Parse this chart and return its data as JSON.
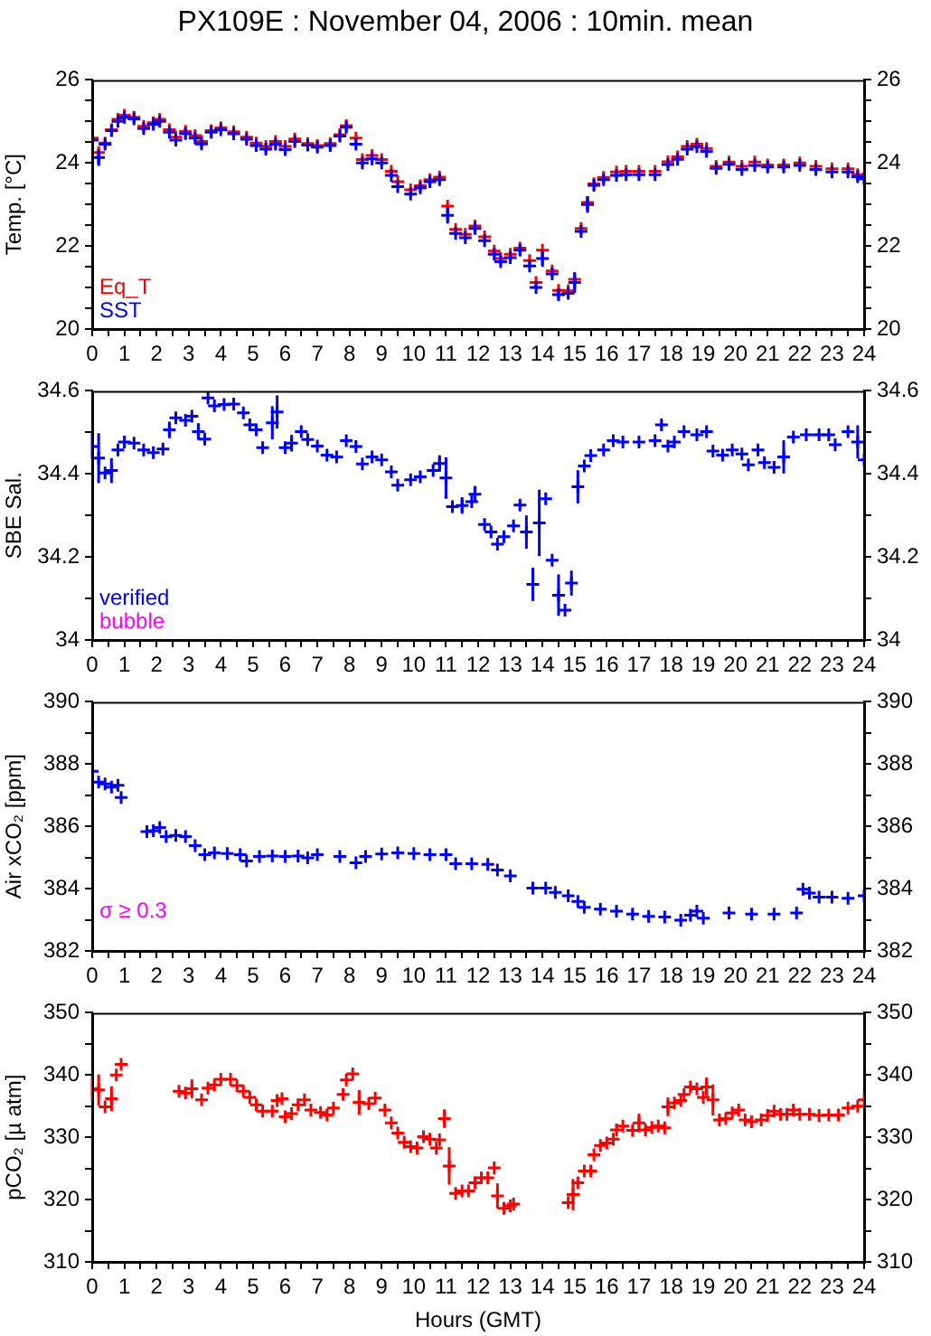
{
  "chart_data": [
    {
      "type": "scatter",
      "title": "PX109E : November 04, 2006 : 10min. mean",
      "ylabel": "Temp. [°C]",
      "legend": "bottom left",
      "marker": "cross",
      "xlim": [
        0,
        24
      ],
      "xticks": [
        0,
        {
          "value": 0.5,
          "label": null
        },
        1,
        {
          "value": 1.5,
          "label": null
        },
        2,
        {
          "value": 2.5,
          "label": null
        },
        3,
        {
          "value": 3.5,
          "label": null
        },
        4,
        {
          "value": 4.5,
          "label": null
        },
        5,
        {
          "value": 5.5,
          "label": null
        },
        6,
        {
          "value": 6.5,
          "label": null
        },
        7,
        {
          "value": 7.5,
          "label": null
        },
        8,
        {
          "value": 8.5,
          "label": null
        },
        9,
        {
          "value": 9.5,
          "label": null
        },
        10,
        {
          "value": 10.5,
          "label": null
        },
        11,
        {
          "value": 11.5,
          "label": null
        },
        12,
        {
          "value": 12.5,
          "label": null
        },
        13,
        {
          "value": 13.5,
          "label": null
        },
        14,
        {
          "value": 14.5,
          "label": null
        },
        15,
        {
          "value": 15.5,
          "label": null
        },
        16,
        {
          "value": 16.5,
          "label": null
        },
        17,
        {
          "value": 17.5,
          "label": null
        },
        18,
        {
          "value": 18.5,
          "label": null
        },
        19,
        {
          "value": 19.5,
          "label": null
        },
        20,
        {
          "value": 20.5,
          "label": null
        },
        21,
        {
          "value": 21.5,
          "label": null
        },
        22,
        {
          "value": 22.5,
          "label": null
        },
        23,
        {
          "value": 23.5,
          "label": null
        },
        24
      ],
      "ylim": [
        20,
        26
      ],
      "yticks": [
        20,
        {
          "value": 20.5,
          "label": null
        },
        {
          "value": 21,
          "label": null
        },
        {
          "value": 21.5,
          "label": null
        },
        22,
        {
          "value": 22.5,
          "label": null
        },
        {
          "value": 23,
          "label": null
        },
        {
          "value": 23.5,
          "label": null
        },
        24,
        {
          "value": 24.5,
          "label": null
        },
        {
          "value": 25,
          "label": null
        },
        {
          "value": 25.5,
          "label": null
        },
        26
      ],
      "y2lim": [
        20,
        26
      ],
      "y2ticks": [
        20,
        {
          "value": 20.5,
          "label": null
        },
        {
          "value": 21,
          "label": null
        },
        {
          "value": 21.5,
          "label": null
        },
        22,
        {
          "value": 22.5,
          "label": null
        },
        {
          "value": 23,
          "label": null
        },
        {
          "value": 23.5,
          "label": null
        },
        24,
        {
          "value": 24.5,
          "label": null
        },
        {
          "value": 25,
          "label": null
        },
        {
          "value": 25.5,
          "label": null
        },
        26
      ],
      "series": [
        {
          "name": "Eq_T",
          "color": "#ff0000",
          "x": [
            0,
            0.2,
            0.4,
            0.6,
            0.8,
            1.0,
            1.3,
            1.6,
            1.9,
            2.1,
            2.4,
            2.6,
            2.9,
            3.2,
            3.4,
            3.7,
            4.0,
            4.4,
            4.8,
            5.1,
            5.4,
            5.7,
            6.0,
            6.3,
            6.7,
            7.0,
            7.4,
            7.7,
            7.9,
            8.2,
            8.4,
            8.7,
            9.0,
            9.3,
            9.5,
            9.9,
            10.2,
            10.5,
            10.8,
            11.05,
            11.3,
            11.6,
            11.9,
            12.2,
            12.5,
            12.7,
            13.0,
            13.3,
            13.6,
            13.8,
            14.0,
            14.3,
            14.5,
            14.8,
            15.0,
            15.2,
            15.4,
            15.6,
            15.9,
            16.3,
            16.6,
            17.0,
            17.5,
            17.9,
            18.2,
            18.5,
            18.8,
            19.1,
            19.4,
            19.8,
            20.2,
            20.6,
            21.0,
            21.5,
            22.0,
            22.5,
            23.0,
            23.5,
            23.8,
            24.0
          ],
          "values": [
            24.6,
            24.25,
            24.48,
            24.8,
            25.05,
            25.15,
            25.1,
            24.88,
            24.97,
            25.05,
            24.8,
            24.62,
            24.76,
            24.66,
            24.52,
            24.78,
            24.85,
            24.75,
            24.62,
            24.48,
            24.4,
            24.52,
            24.4,
            24.58,
            24.47,
            24.42,
            24.47,
            24.68,
            24.9,
            24.6,
            24.08,
            24.18,
            24.08,
            23.8,
            23.55,
            23.35,
            23.45,
            23.6,
            23.66,
            22.96,
            22.4,
            22.28,
            22.48,
            22.22,
            21.88,
            21.7,
            21.8,
            21.95,
            21.65,
            21.12,
            21.9,
            21.4,
            20.93,
            20.92,
            21.2,
            22.42,
            23.05,
            23.5,
            23.65,
            23.78,
            23.8,
            23.8,
            23.8,
            24.03,
            24.15,
            24.4,
            24.45,
            24.35,
            23.92,
            24.02,
            23.92,
            24.02,
            23.95,
            23.95,
            24.0,
            23.92,
            23.86,
            23.86,
            23.72,
            23.65
          ]
        },
        {
          "name": "SST",
          "color": "#0000ff",
          "x": [
            0,
            0.2,
            0.4,
            0.6,
            0.8,
            1.0,
            1.3,
            1.6,
            1.9,
            2.1,
            2.4,
            2.6,
            2.9,
            3.2,
            3.4,
            3.7,
            4.0,
            4.4,
            4.8,
            5.1,
            5.4,
            5.7,
            6.0,
            6.3,
            6.7,
            7.0,
            7.4,
            7.7,
            7.9,
            8.2,
            8.4,
            8.7,
            9.0,
            9.3,
            9.5,
            9.9,
            10.2,
            10.5,
            10.8,
            11.05,
            11.3,
            11.6,
            11.9,
            12.2,
            12.5,
            12.7,
            13.0,
            13.3,
            13.6,
            13.8,
            14.0,
            14.3,
            14.5,
            14.8,
            15.0,
            15.2,
            15.4,
            15.6,
            15.9,
            16.3,
            16.6,
            17.0,
            17.5,
            17.9,
            18.2,
            18.5,
            18.8,
            19.1,
            19.4,
            19.8,
            20.2,
            20.6,
            21.0,
            21.5,
            22.0,
            22.5,
            23.0,
            23.5,
            23.8,
            24.0
          ],
          "values": [
            24.55,
            24.13,
            24.45,
            24.78,
            25.0,
            25.1,
            25.06,
            24.83,
            24.93,
            25.0,
            24.74,
            24.55,
            24.71,
            24.6,
            24.46,
            24.74,
            24.8,
            24.7,
            24.57,
            24.42,
            24.33,
            24.45,
            24.32,
            24.52,
            24.43,
            24.38,
            24.42,
            24.65,
            24.86,
            24.45,
            24.0,
            24.1,
            24.0,
            23.7,
            23.43,
            23.25,
            23.4,
            23.55,
            23.6,
            22.74,
            22.3,
            22.2,
            22.42,
            22.13,
            21.8,
            21.62,
            21.72,
            21.9,
            21.52,
            21.0,
            21.7,
            21.33,
            20.83,
            20.86,
            21.12,
            22.35,
            23.0,
            23.46,
            23.6,
            23.7,
            23.72,
            23.72,
            23.72,
            23.96,
            24.09,
            24.33,
            24.39,
            24.28,
            23.87,
            23.97,
            23.84,
            23.94,
            23.9,
            23.9,
            23.94,
            23.84,
            23.78,
            23.78,
            23.67,
            23.62
          ],
          "errors": [
            null,
            0.2,
            null,
            null,
            null,
            null,
            null,
            null,
            null,
            null,
            null,
            null,
            null,
            null,
            null,
            null,
            null,
            null,
            null,
            null,
            null,
            null,
            null,
            null,
            null,
            null,
            null,
            null,
            null,
            null,
            null,
            null,
            null,
            null,
            null,
            null,
            null,
            null,
            null,
            0.2,
            null,
            null,
            null,
            null,
            null,
            null,
            null,
            null,
            null,
            null,
            0.2,
            null,
            0.12,
            null,
            0.25,
            null,
            0.2,
            null,
            null,
            null,
            null,
            null,
            null,
            null,
            null,
            null,
            null,
            null,
            null,
            null,
            null,
            null,
            null,
            null,
            null,
            null,
            null,
            null,
            null,
            null
          ]
        }
      ]
    },
    {
      "type": "scatter",
      "ylabel": "SBE Sal.",
      "legend": "bottom left",
      "marker": "cross",
      "xlim": [
        0,
        24
      ],
      "xticks": [
        0,
        {
          "value": 0.5,
          "label": null
        },
        1,
        {
          "value": 1.5,
          "label": null
        },
        2,
        {
          "value": 2.5,
          "label": null
        },
        3,
        {
          "value": 3.5,
          "label": null
        },
        4,
        {
          "value": 4.5,
          "label": null
        },
        5,
        {
          "value": 5.5,
          "label": null
        },
        6,
        {
          "value": 6.5,
          "label": null
        },
        7,
        {
          "value": 7.5,
          "label": null
        },
        8,
        {
          "value": 8.5,
          "label": null
        },
        9,
        {
          "value": 9.5,
          "label": null
        },
        10,
        {
          "value": 10.5,
          "label": null
        },
        11,
        {
          "value": 11.5,
          "label": null
        },
        12,
        {
          "value": 12.5,
          "label": null
        },
        13,
        {
          "value": 13.5,
          "label": null
        },
        14,
        {
          "value": 14.5,
          "label": null
        },
        15,
        {
          "value": 15.5,
          "label": null
        },
        16,
        {
          "value": 16.5,
          "label": null
        },
        17,
        {
          "value": 17.5,
          "label": null
        },
        18,
        {
          "value": 18.5,
          "label": null
        },
        19,
        {
          "value": 19.5,
          "label": null
        },
        20,
        {
          "value": 20.5,
          "label": null
        },
        21,
        {
          "value": 21.5,
          "label": null
        },
        22,
        {
          "value": 22.5,
          "label": null
        },
        23,
        {
          "value": 23.5,
          "label": null
        },
        24
      ],
      "ylim": [
        34,
        34.6
      ],
      "yticks": [
        34,
        {
          "value": 34.1,
          "label": null
        },
        34.2,
        {
          "value": 34.3,
          "label": null
        },
        34.4,
        {
          "value": 34.5,
          "label": null
        },
        34.6
      ],
      "y2lim": [
        34,
        34.6
      ],
      "y2ticks": [
        34,
        {
          "value": 34.1,
          "label": null
        },
        34.2,
        {
          "value": 34.3,
          "label": null
        },
        34.4,
        {
          "value": 34.5,
          "label": null
        },
        34.6
      ],
      "series": [
        {
          "name": "verified",
          "color": "#0000ff",
          "x": [
            0,
            0.2,
            0.4,
            0.6,
            0.8,
            1.0,
            1.3,
            1.6,
            1.9,
            2.2,
            2.4,
            2.6,
            2.9,
            3.1,
            3.3,
            3.5,
            3.6,
            3.8,
            4.1,
            4.4,
            4.7,
            4.9,
            5.1,
            5.3,
            5.6,
            5.75,
            6.0,
            6.2,
            6.5,
            6.7,
            7.0,
            7.3,
            7.6,
            7.9,
            8.2,
            8.4,
            8.7,
            9.0,
            9.3,
            9.5,
            9.9,
            10.2,
            10.6,
            10.8,
            11.0,
            11.2,
            11.5,
            11.8,
            11.9,
            12.2,
            12.4,
            12.6,
            12.8,
            13.1,
            13.3,
            13.5,
            13.7,
            13.9,
            14.1,
            14.3,
            14.5,
            14.7,
            14.9,
            15.1,
            15.3,
            15.5,
            15.9,
            16.2,
            16.5,
            17.0,
            17.5,
            17.7,
            17.9,
            18.1,
            18.4,
            18.8,
            19.1,
            19.3,
            19.6,
            19.9,
            20.2,
            20.4,
            20.7,
            20.9,
            21.2,
            21.5,
            21.8,
            22.2,
            22.6,
            22.9,
            23.1,
            23.5,
            23.8,
            24.0
          ],
          "values": [
            34.466,
            34.438,
            34.402,
            34.408,
            34.458,
            34.477,
            34.474,
            34.458,
            34.451,
            34.46,
            34.506,
            34.535,
            34.529,
            34.539,
            34.502,
            34.484,
            34.583,
            34.564,
            34.567,
            34.568,
            34.547,
            34.518,
            34.506,
            34.463,
            34.523,
            34.549,
            34.463,
            34.474,
            34.502,
            34.483,
            34.467,
            34.445,
            34.441,
            34.48,
            34.466,
            34.424,
            34.441,
            34.434,
            34.405,
            34.373,
            34.386,
            34.393,
            34.408,
            34.425,
            34.39,
            34.321,
            34.324,
            34.333,
            34.351,
            34.278,
            34.26,
            34.231,
            34.249,
            34.275,
            34.325,
            34.26,
            34.134,
            34.282,
            34.34,
            34.192,
            34.108,
            34.072,
            34.137,
            34.369,
            34.419,
            34.444,
            34.458,
            34.48,
            34.477,
            34.477,
            34.48,
            34.518,
            34.467,
            34.477,
            34.502,
            34.494,
            34.502,
            34.455,
            34.445,
            34.458,
            34.448,
            34.422,
            34.458,
            34.427,
            34.416,
            34.441,
            34.489,
            34.494,
            34.494,
            34.494,
            34.47,
            34.502,
            34.477,
            34.434
          ],
          "errors": [
            0.03,
            0.06,
            null,
            0.03,
            null,
            null,
            null,
            null,
            null,
            null,
            0.02,
            null,
            null,
            null,
            0.02,
            null,
            null,
            null,
            null,
            null,
            null,
            null,
            null,
            null,
            0.04,
            0.04,
            null,
            0.02,
            null,
            null,
            null,
            null,
            null,
            null,
            null,
            null,
            null,
            null,
            null,
            null,
            null,
            null,
            null,
            0.02,
            0.05,
            null,
            0.02,
            null,
            0.02,
            null,
            null,
            null,
            null,
            null,
            null,
            0.04,
            0.04,
            0.08,
            null,
            null,
            0.05,
            null,
            0.03,
            0.04,
            null,
            null,
            null,
            null,
            null,
            null,
            null,
            null,
            null,
            null,
            null,
            null,
            null,
            null,
            null,
            null,
            null,
            null,
            null,
            null,
            null,
            0.04,
            null,
            null,
            null,
            null,
            null,
            null,
            0.04,
            null
          ]
        },
        {
          "name": "bubble",
          "color": "#ff00ff"
        }
      ]
    },
    {
      "type": "scatter",
      "ylabel": "Air xCO₂ [ppm]",
      "annotations": [
        "σ ≥ 0.3"
      ],
      "marker": "cross",
      "xlim": [
        0,
        24
      ],
      "xticks": [
        0,
        {
          "value": 0.5,
          "label": null
        },
        1,
        {
          "value": 1.5,
          "label": null
        },
        2,
        {
          "value": 2.5,
          "label": null
        },
        3,
        {
          "value": 3.5,
          "label": null
        },
        4,
        {
          "value": 4.5,
          "label": null
        },
        5,
        {
          "value": 5.5,
          "label": null
        },
        6,
        {
          "value": 6.5,
          "label": null
        },
        7,
        {
          "value": 7.5,
          "label": null
        },
        8,
        {
          "value": 8.5,
          "label": null
        },
        9,
        {
          "value": 9.5,
          "label": null
        },
        10,
        {
          "value": 10.5,
          "label": null
        },
        11,
        {
          "value": 11.5,
          "label": null
        },
        12,
        {
          "value": 12.5,
          "label": null
        },
        13,
        {
          "value": 13.5,
          "label": null
        },
        14,
        {
          "value": 14.5,
          "label": null
        },
        15,
        {
          "value": 15.5,
          "label": null
        },
        16,
        {
          "value": 16.5,
          "label": null
        },
        17,
        {
          "value": 17.5,
          "label": null
        },
        18,
        {
          "value": 18.5,
          "label": null
        },
        19,
        {
          "value": 19.5,
          "label": null
        },
        20,
        {
          "value": 20.5,
          "label": null
        },
        21,
        {
          "value": 21.5,
          "label": null
        },
        22,
        {
          "value": 22.5,
          "label": null
        },
        23,
        {
          "value": 23.5,
          "label": null
        },
        24
      ],
      "ylim": [
        382,
        390
      ],
      "yticks": [
        382,
        {
          "value": 383,
          "label": null
        },
        384,
        {
          "value": 385,
          "label": null
        },
        386,
        {
          "value": 387,
          "label": null
        },
        388,
        {
          "value": 389,
          "label": null
        },
        390
      ],
      "y2lim": [
        382,
        390
      ],
      "y2ticks": [
        382,
        {
          "value": 383,
          "label": null
        },
        384,
        {
          "value": 385,
          "label": null
        },
        386,
        {
          "value": 387,
          "label": null
        },
        388,
        {
          "value": 389,
          "label": null
        },
        390
      ],
      "series": [
        {
          "color": "#0000ff",
          "x": [
            0,
            0.2,
            0.4,
            0.6,
            0.8,
            0.9,
            1.7,
            1.9,
            2.1,
            2.3,
            2.6,
            2.9,
            3.2,
            3.5,
            3.8,
            4.2,
            4.6,
            4.8,
            5.2,
            5.6,
            6.0,
            6.4,
            6.7,
            7.0,
            7.7,
            8.2,
            8.5,
            9.0,
            9.5,
            10.0,
            10.5,
            11.0,
            11.3,
            11.8,
            12.3,
            12.6,
            13.0,
            13.7,
            14.1,
            14.4,
            14.8,
            15.1,
            15.3,
            15.8,
            16.3,
            16.8,
            17.3,
            17.8,
            18.3,
            18.6,
            18.8,
            19.0,
            19.8,
            20.5,
            21.2,
            21.9,
            22.1,
            22.3,
            22.6,
            23.0,
            23.5,
            24.0
          ],
          "values": [
            387.77,
            387.42,
            387.36,
            387.26,
            387.32,
            386.93,
            385.83,
            385.86,
            385.96,
            385.67,
            385.71,
            385.67,
            385.38,
            385.09,
            385.15,
            385.13,
            385.09,
            384.89,
            385.03,
            385.05,
            385.03,
            385.05,
            384.99,
            385.09,
            385.03,
            384.83,
            385.03,
            385.11,
            385.15,
            385.13,
            385.09,
            385.09,
            384.8,
            384.8,
            384.78,
            384.6,
            384.41,
            384.02,
            384.02,
            383.88,
            383.77,
            383.59,
            383.4,
            383.34,
            383.28,
            383.18,
            383.11,
            383.09,
            382.99,
            383.15,
            383.28,
            383.05,
            383.22,
            383.18,
            383.18,
            383.22,
            383.98,
            383.86,
            383.73,
            383.73,
            383.69,
            383.77
          ]
        }
      ]
    },
    {
      "type": "scatter",
      "ylabel": "pCO₂ [µ atm]",
      "xlabel": "Hours (GMT)",
      "marker": "cross",
      "xlim": [
        0,
        24
      ],
      "xticks": [
        0,
        {
          "value": 0.5,
          "label": null
        },
        1,
        {
          "value": 1.5,
          "label": null
        },
        2,
        {
          "value": 2.5,
          "label": null
        },
        3,
        {
          "value": 3.5,
          "label": null
        },
        4,
        {
          "value": 4.5,
          "label": null
        },
        5,
        {
          "value": 5.5,
          "label": null
        },
        6,
        {
          "value": 6.5,
          "label": null
        },
        7,
        {
          "value": 7.5,
          "label": null
        },
        8,
        {
          "value": 8.5,
          "label": null
        },
        9,
        {
          "value": 9.5,
          "label": null
        },
        10,
        {
          "value": 10.5,
          "label": null
        },
        11,
        {
          "value": 11.5,
          "label": null
        },
        12,
        {
          "value": 12.5,
          "label": null
        },
        13,
        {
          "value": 13.5,
          "label": null
        },
        14,
        {
          "value": 14.5,
          "label": null
        },
        15,
        {
          "value": 15.5,
          "label": null
        },
        16,
        {
          "value": 16.5,
          "label": null
        },
        17,
        {
          "value": 17.5,
          "label": null
        },
        18,
        {
          "value": 18.5,
          "label": null
        },
        19,
        {
          "value": 19.5,
          "label": null
        },
        20,
        {
          "value": 20.5,
          "label": null
        },
        21,
        {
          "value": 21.5,
          "label": null
        },
        22,
        {
          "value": 22.5,
          "label": null
        },
        23,
        {
          "value": 23.5,
          "label": null
        },
        24
      ],
      "ylim": [
        310,
        350
      ],
      "yticks": [
        310,
        {
          "value": 315,
          "label": null
        },
        320,
        {
          "value": 325,
          "label": null
        },
        330,
        {
          "value": 335,
          "label": null
        },
        340,
        {
          "value": 345,
          "label": null
        },
        350
      ],
      "y2lim": [
        310,
        350
      ],
      "y2ticks": [
        310,
        {
          "value": 315,
          "label": null
        },
        320,
        {
          "value": 325,
          "label": null
        },
        330,
        {
          "value": 335,
          "label": null
        },
        340,
        {
          "value": 345,
          "label": null
        },
        350
      ],
      "series": [
        {
          "color": "#ff0000",
          "x": [
            0,
            0.2,
            0.4,
            0.6,
            0.75,
            0.9,
            2.7,
            2.9,
            3.1,
            3.4,
            3.6,
            3.8,
            4.0,
            4.3,
            4.5,
            4.7,
            4.9,
            5.1,
            5.3,
            5.6,
            5.75,
            5.9,
            6.0,
            6.2,
            6.4,
            6.6,
            6.8,
            7.1,
            7.3,
            7.5,
            7.8,
            7.9,
            8.1,
            8.3,
            8.6,
            8.8,
            9.1,
            9.3,
            9.5,
            9.7,
            9.9,
            10.1,
            10.3,
            10.5,
            10.7,
            10.8,
            10.95,
            11.1,
            11.3,
            11.5,
            11.7,
            11.9,
            12.1,
            12.3,
            12.5,
            12.6,
            12.8,
            13.0,
            13.1,
            14.8,
            14.95,
            15.1,
            15.3,
            15.5,
            15.6,
            15.8,
            16.0,
            16.2,
            16.3,
            16.5,
            16.8,
            17.0,
            17.2,
            17.4,
            17.6,
            17.8,
            17.9,
            18.1,
            18.3,
            18.4,
            18.6,
            18.8,
            19.0,
            19.1,
            19.3,
            19.5,
            19.7,
            19.9,
            20.1,
            20.3,
            20.5,
            20.8,
            21.0,
            21.2,
            21.4,
            21.6,
            21.8,
            22.0,
            22.3,
            22.6,
            22.9,
            23.2,
            23.5,
            23.8,
            24.0
          ],
          "values": [
            337.8,
            337.6,
            334.9,
            336.2,
            340,
            341.7,
            337.4,
            337.1,
            337.8,
            336,
            337.9,
            338.4,
            339.3,
            339.3,
            338.3,
            337.4,
            336.4,
            335.2,
            334.2,
            334.2,
            335.9,
            336.2,
            333.3,
            333.8,
            335.2,
            336,
            334.4,
            334,
            333.6,
            334.7,
            336.9,
            339.2,
            340.2,
            335.6,
            335.4,
            336.3,
            334.4,
            332.3,
            330.7,
            329.2,
            328.5,
            328.3,
            330.1,
            329.7,
            328.3,
            329.6,
            333,
            325.4,
            321,
            321.4,
            321.4,
            322.7,
            323.5,
            323.5,
            325.1,
            320.6,
            318.6,
            319,
            319.3,
            319.5,
            320.8,
            322.7,
            324.6,
            324.6,
            327.2,
            328.7,
            329.1,
            329.7,
            331.2,
            331.8,
            331.1,
            332.3,
            331.2,
            331.6,
            331.8,
            331.5,
            334.9,
            335.5,
            335.9,
            336.9,
            338.1,
            337.8,
            336.4,
            338.1,
            336,
            332.8,
            333,
            333.9,
            334.4,
            332.8,
            332.5,
            332.8,
            333.5,
            334.2,
            333.7,
            333.7,
            334.4,
            333.7,
            333.7,
            333.5,
            333.6,
            333.6,
            334.7,
            335,
            336
          ],
          "errors": [
            2,
            2.5,
            null,
            2,
            null,
            null,
            null,
            null,
            1.5,
            null,
            null,
            null,
            null,
            null,
            null,
            null,
            null,
            null,
            null,
            null,
            null,
            null,
            null,
            null,
            null,
            null,
            null,
            null,
            null,
            null,
            null,
            null,
            null,
            2,
            null,
            null,
            null,
            null,
            null,
            null,
            null,
            null,
            null,
            null,
            null,
            null,
            1.5,
            3,
            null,
            null,
            null,
            null,
            null,
            null,
            null,
            2,
            null,
            null,
            null,
            null,
            2.5,
            null,
            null,
            null,
            null,
            null,
            null,
            null,
            null,
            null,
            null,
            1.5,
            null,
            null,
            null,
            null,
            1.5,
            null,
            null,
            null,
            null,
            null,
            null,
            1.5,
            2.5,
            null,
            null,
            null,
            null,
            null,
            null,
            null,
            null,
            null,
            null,
            null,
            null,
            null,
            null,
            null,
            null,
            null,
            null,
            null,
            null
          ]
        }
      ]
    }
  ]
}
